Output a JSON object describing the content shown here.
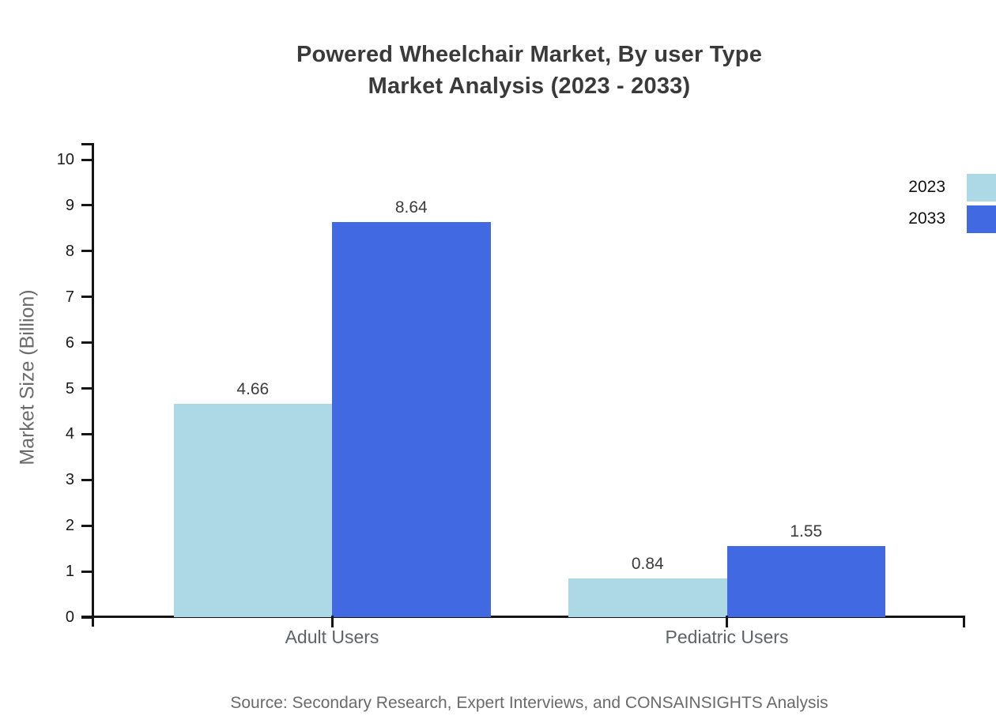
{
  "title": "Powered Wheelchair Market, By user Type",
  "subtitle": "Market Analysis (2023 - 2033)",
  "source": "Source: Secondary Research, Expert Interviews, and CONSAINSIGHTS Analysis",
  "chart_data": {
    "type": "bar",
    "categories": [
      "Adult Users",
      "Pediatric Users"
    ],
    "series": [
      {
        "name": "2023",
        "color": "#ADD8E6",
        "values": [
          4.66,
          0.84
        ],
        "labels": [
          "4.66",
          "0.84"
        ]
      },
      {
        "name": "2033",
        "color": "#4169E1",
        "values": [
          8.64,
          1.55
        ],
        "labels": [
          "8.64",
          "1.55"
        ]
      }
    ],
    "xlabel": "",
    "ylabel": "Market Size (Billion)",
    "ylim": [
      0,
      10
    ],
    "ytick_step": 1,
    "grid": false,
    "legend_position": "top-right-outside",
    "background_color": "#ffffff",
    "axis_color": "#151515",
    "title_color": "#3a3a3a",
    "label_color": "#3c3c3c"
  }
}
